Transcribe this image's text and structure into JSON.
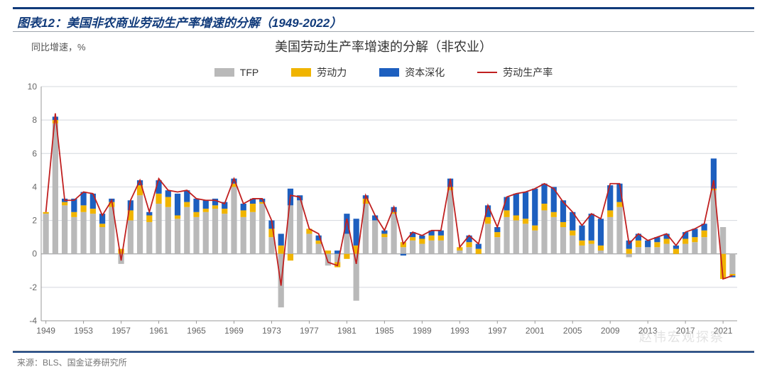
{
  "header_label": "图表12：",
  "header_title": "美国非农商业劳动生产率增速的分解（1949-2022）",
  "y_axis_note": "同比增速，%",
  "chart_title": "美国劳动生产率增速的分解（非农业）",
  "source": "来源：BLS、国金证券研究所",
  "watermark": "赵伟宏观探察",
  "legend": {
    "tfp": "TFP",
    "labor": "劳动力",
    "capital": "资本深化",
    "line": "劳动生产率"
  },
  "colors": {
    "tfp": "#b9b9b9",
    "labor": "#f0b400",
    "capital": "#1d5fbf",
    "line": "#c02020",
    "grid": "#d4d8de",
    "axis": "#666666",
    "header": "#103a7a"
  },
  "chart": {
    "type": "stacked-bar+line",
    "ylim": [
      -4,
      10
    ],
    "ytick_step": 2,
    "bar_width": 0.62,
    "line_width": 1.8,
    "x_labels": [
      "1949",
      "1953",
      "1957",
      "1961",
      "1965",
      "1969",
      "1973",
      "1977",
      "1981",
      "1985",
      "1989",
      "1993",
      "1997",
      "2001",
      "2005",
      "2009",
      "2013",
      "2017",
      "2021"
    ],
    "x_label_step": 4,
    "years_start": 1949,
    "years_end": 2022,
    "series": {
      "tfp": [
        2.4,
        7.8,
        2.9,
        2.2,
        2.5,
        2.4,
        1.6,
        2.8,
        -0.6,
        2.0,
        3.5,
        1.9,
        3.0,
        2.8,
        2.1,
        2.8,
        2.2,
        2.5,
        2.7,
        2.4,
        4.0,
        2.2,
        2.5,
        3.0,
        1.0,
        -3.2,
        2.9,
        3.2,
        1.2,
        0.6,
        -0.7,
        -0.5,
        1.2,
        -2.8,
        3.0,
        2.0,
        1.0,
        2.4,
        0.4,
        0.8,
        0.6,
        0.8,
        0.8,
        3.8,
        0.2,
        0.4,
        0.0,
        1.8,
        1.0,
        2.2,
        2.0,
        1.8,
        1.4,
        2.6,
        2.2,
        1.6,
        1.1,
        0.5,
        0.6,
        0.2,
        2.2,
        2.8,
        -0.2,
        0.4,
        0.4,
        0.4,
        0.6,
        0.0,
        0.6,
        0.7,
        1.0,
        3.8,
        1.6,
        -1.2
      ],
      "labor": [
        0.1,
        0.2,
        0.2,
        0.3,
        0.4,
        0.3,
        0.2,
        0.3,
        0.3,
        0.6,
        0.6,
        0.4,
        0.6,
        0.6,
        0.2,
        0.3,
        0.3,
        0.2,
        0.2,
        0.3,
        0.2,
        0.4,
        0.5,
        0.1,
        0.5,
        0.5,
        -0.4,
        0.0,
        0.3,
        0.2,
        0.2,
        -0.3,
        -0.3,
        0.5,
        0.3,
        0.0,
        0.2,
        0.1,
        0.3,
        0.2,
        0.3,
        0.3,
        0.3,
        0.2,
        0.2,
        0.3,
        0.3,
        0.4,
        0.3,
        0.4,
        0.3,
        0.3,
        0.3,
        0.4,
        0.3,
        0.3,
        0.3,
        0.3,
        0.2,
        0.3,
        0.4,
        0.3,
        0.3,
        0.4,
        0.0,
        0.3,
        0.3,
        0.3,
        0.3,
        0.3,
        0.4,
        0.1,
        0.0,
        -0.1
      ],
      "capital": [
        0.0,
        0.2,
        0.2,
        0.8,
        0.8,
        0.9,
        0.6,
        0.2,
        0.0,
        0.6,
        0.3,
        0.2,
        0.8,
        0.4,
        1.3,
        0.7,
        0.8,
        0.5,
        0.4,
        0.4,
        0.3,
        0.4,
        0.3,
        0.2,
        0.5,
        0.7,
        1.0,
        0.3,
        0.0,
        0.3,
        0.0,
        0.2,
        1.2,
        1.6,
        0.2,
        0.3,
        0.2,
        0.3,
        -0.1,
        0.3,
        0.2,
        0.3,
        0.3,
        0.5,
        0.0,
        0.4,
        0.3,
        0.7,
        0.3,
        0.8,
        1.3,
        1.6,
        2.2,
        1.2,
        1.5,
        1.3,
        1.1,
        0.9,
        1.6,
        1.6,
        1.5,
        1.1,
        0.5,
        0.4,
        0.4,
        0.3,
        0.3,
        0.2,
        0.4,
        0.5,
        0.4,
        1.8,
        0.0,
        -0.1
      ],
      "neg_lab": [
        0,
        0,
        0,
        0,
        0,
        0,
        0,
        0,
        0,
        0,
        0,
        0,
        0,
        0,
        0,
        0,
        0,
        0,
        0,
        0,
        0,
        0,
        0,
        0,
        0,
        0,
        0,
        0,
        0,
        0,
        0,
        0,
        0,
        0,
        0,
        0,
        0,
        0,
        0,
        0,
        0,
        0,
        0,
        0,
        0,
        0,
        0,
        0,
        0,
        0,
        0,
        0,
        0,
        0,
        0,
        0,
        0,
        0,
        0,
        0,
        0,
        0,
        0,
        0,
        0,
        0,
        0,
        0,
        0,
        0,
        0,
        0,
        -1.5,
        0
      ]
    },
    "line": [
      2.5,
      8.4,
      3.2,
      3.2,
      3.7,
      3.6,
      2.3,
      3.2,
      -0.4,
      3.2,
      4.4,
      2.5,
      4.5,
      3.8,
      3.7,
      3.8,
      3.3,
      3.2,
      3.2,
      3.0,
      4.5,
      3.0,
      3.3,
      3.3,
      2.0,
      -1.9,
      3.5,
      3.4,
      1.5,
      1.2,
      -0.5,
      -0.7,
      2.1,
      -0.6,
      3.5,
      2.3,
      1.4,
      2.8,
      0.6,
      1.3,
      1.1,
      1.4,
      1.4,
      4.5,
      0.4,
      1.1,
      0.6,
      2.9,
      1.6,
      3.4,
      3.6,
      3.7,
      3.9,
      4.2,
      3.9,
      3.1,
      2.5,
      1.7,
      2.4,
      2.1,
      4.2,
      4.2,
      0.6,
      1.2,
      0.8,
      1.0,
      1.2,
      0.5,
      1.3,
      1.5,
      1.8,
      4.4,
      -1.5,
      -1.3
    ]
  }
}
